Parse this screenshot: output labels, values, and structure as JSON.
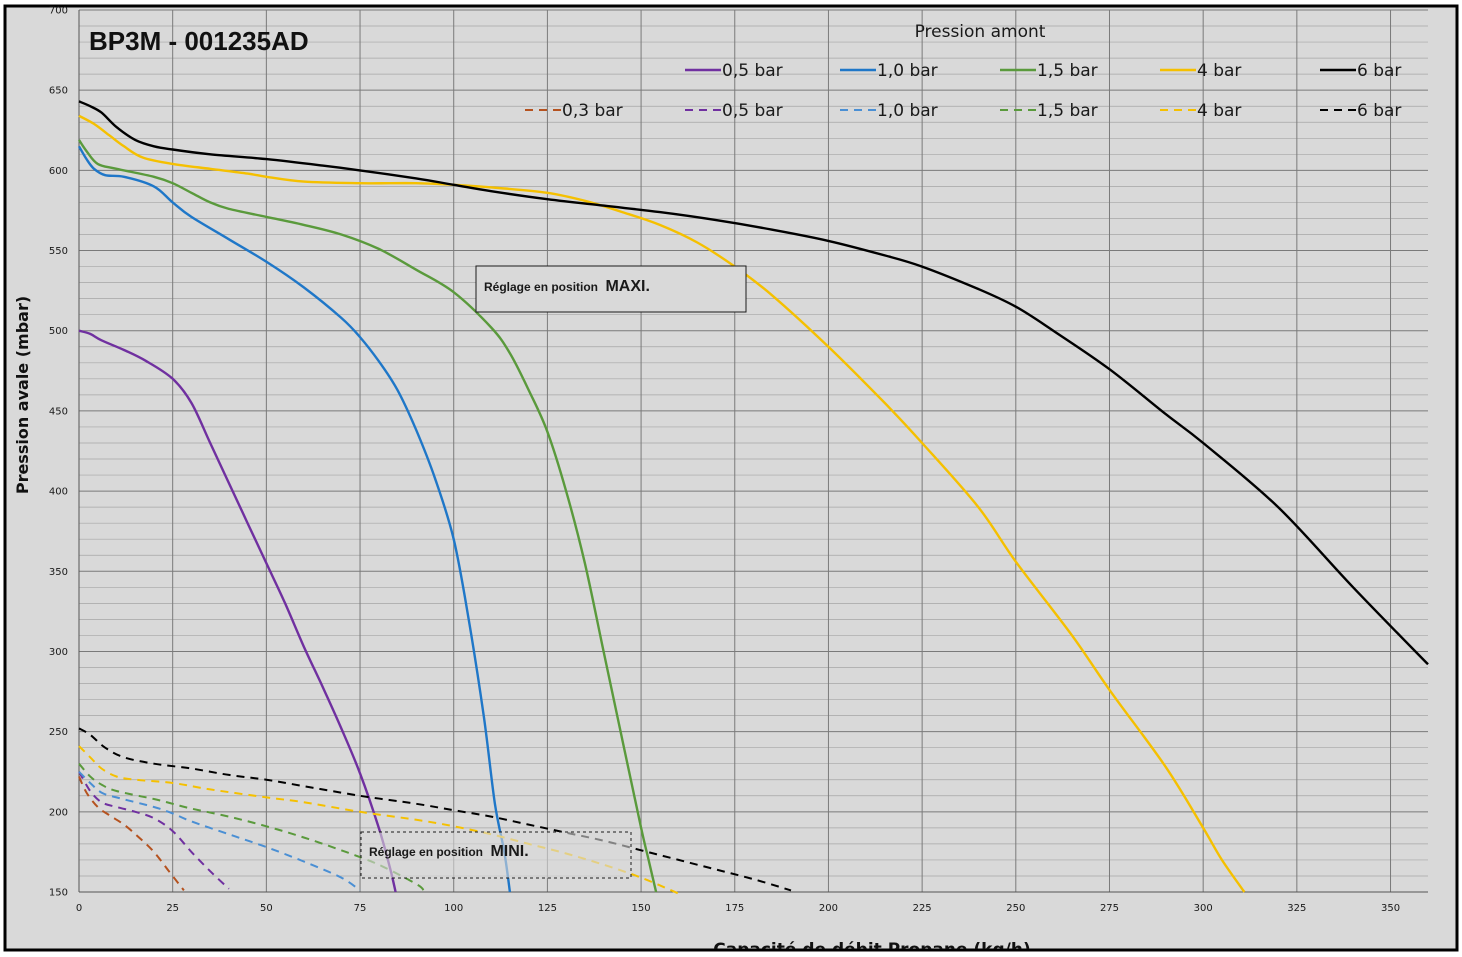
{
  "chart_data": {
    "type": "line",
    "title": "BP3M - 001235AD",
    "xlabel": "Capacité de débit Propane (kg/h)",
    "ylabel": "Pression avale (mbar)",
    "legend_title": "Pression amont",
    "legend_position": "top-right",
    "grid": true,
    "xlim": [
      0,
      360
    ],
    "ylim": [
      150,
      700
    ],
    "xticks": [
      0,
      25,
      50,
      75,
      100,
      125,
      150,
      175,
      200,
      225,
      250,
      275,
      300,
      325,
      350
    ],
    "yticks": [
      150,
      200,
      250,
      300,
      350,
      400,
      450,
      500,
      550,
      600,
      650,
      700
    ],
    "colors": {
      "background": "#d9d9d9",
      "grid": "#8c8c8c",
      "purple": "#7030a0",
      "blue": "#1f77c8",
      "green": "#5a9a3c",
      "yellow": "#f5c000",
      "black": "#000000",
      "orange": "#b5521f"
    },
    "annotations": [
      {
        "text_small": "Réglage en position",
        "text_big": "MAXI.",
        "style": "solid"
      },
      {
        "text_small": "Réglage en position",
        "text_big": "MINI.",
        "style": "dashed"
      }
    ],
    "series": [
      {
        "name": "0,5 bar",
        "style": "solid",
        "color": "#7030a0",
        "points": [
          [
            0,
            500
          ],
          [
            3,
            498
          ],
          [
            6,
            494
          ],
          [
            12,
            488
          ],
          [
            18,
            481
          ],
          [
            25,
            470
          ],
          [
            30,
            455
          ],
          [
            35,
            430
          ],
          [
            40,
            405
          ],
          [
            45,
            380
          ],
          [
            50,
            355
          ],
          [
            55,
            330
          ],
          [
            60,
            303
          ],
          [
            65,
            278
          ],
          [
            70,
            252
          ],
          [
            75,
            224
          ],
          [
            80,
            190
          ],
          [
            83,
            165
          ],
          [
            84.5,
            150
          ]
        ]
      },
      {
        "name": "1,0 bar",
        "style": "solid",
        "color": "#1f77c8",
        "points": [
          [
            0,
            615
          ],
          [
            2,
            607
          ],
          [
            4,
            601
          ],
          [
            7,
            597
          ],
          [
            12,
            596
          ],
          [
            20,
            590
          ],
          [
            25,
            580
          ],
          [
            30,
            571
          ],
          [
            40,
            557
          ],
          [
            50,
            543
          ],
          [
            60,
            527
          ],
          [
            70,
            508
          ],
          [
            75,
            496
          ],
          [
            80,
            481
          ],
          [
            85,
            463
          ],
          [
            90,
            438
          ],
          [
            95,
            408
          ],
          [
            100,
            370
          ],
          [
            104,
            320
          ],
          [
            108,
            260
          ],
          [
            111,
            205
          ],
          [
            113.5,
            175
          ],
          [
            115,
            150
          ]
        ]
      },
      {
        "name": "1,5 bar",
        "style": "solid",
        "color": "#5a9a3c",
        "points": [
          [
            0,
            619
          ],
          [
            2,
            612
          ],
          [
            5,
            604
          ],
          [
            10,
            601
          ],
          [
            20,
            596
          ],
          [
            25,
            592
          ],
          [
            30,
            586
          ],
          [
            35,
            580
          ],
          [
            40,
            576
          ],
          [
            50,
            571
          ],
          [
            60,
            566
          ],
          [
            70,
            560
          ],
          [
            80,
            551
          ],
          [
            90,
            538
          ],
          [
            100,
            524
          ],
          [
            110,
            502
          ],
          [
            115,
            486
          ],
          [
            120,
            463
          ],
          [
            125,
            437
          ],
          [
            130,
            400
          ],
          [
            135,
            355
          ],
          [
            140,
            300
          ],
          [
            145,
            245
          ],
          [
            150,
            190
          ],
          [
            152,
            170
          ],
          [
            154,
            150
          ]
        ]
      },
      {
        "name": "4 bar",
        "style": "solid",
        "color": "#f5c000",
        "points": [
          [
            0,
            634
          ],
          [
            4,
            629
          ],
          [
            8,
            622
          ],
          [
            12,
            615
          ],
          [
            17,
            608
          ],
          [
            25,
            604
          ],
          [
            35,
            601
          ],
          [
            45,
            598
          ],
          [
            50,
            596
          ],
          [
            60,
            593
          ],
          [
            75,
            592
          ],
          [
            90,
            592
          ],
          [
            100,
            591
          ],
          [
            112,
            589
          ],
          [
            125,
            586
          ],
          [
            135,
            581
          ],
          [
            145,
            574
          ],
          [
            155,
            566
          ],
          [
            165,
            555
          ],
          [
            175,
            540
          ],
          [
            185,
            522
          ],
          [
            200,
            490
          ],
          [
            215,
            455
          ],
          [
            225,
            430
          ],
          [
            240,
            390
          ],
          [
            250,
            356
          ],
          [
            265,
            310
          ],
          [
            275,
            276
          ],
          [
            290,
            228
          ],
          [
            300,
            190
          ],
          [
            305,
            170
          ],
          [
            311,
            150
          ]
        ]
      },
      {
        "name": "6 bar",
        "style": "solid",
        "color": "#000000",
        "points": [
          [
            0,
            643
          ],
          [
            3,
            640
          ],
          [
            6,
            636
          ],
          [
            10,
            627
          ],
          [
            15,
            619
          ],
          [
            20,
            615
          ],
          [
            25,
            613
          ],
          [
            35,
            610
          ],
          [
            50,
            607
          ],
          [
            65,
            603
          ],
          [
            75,
            600
          ],
          [
            90,
            595
          ],
          [
            100,
            591
          ],
          [
            110,
            587
          ],
          [
            125,
            582
          ],
          [
            140,
            578
          ],
          [
            155,
            574
          ],
          [
            170,
            569
          ],
          [
            185,
            563
          ],
          [
            200,
            556
          ],
          [
            215,
            547
          ],
          [
            225,
            540
          ],
          [
            240,
            526
          ],
          [
            250,
            515
          ],
          [
            260,
            500
          ],
          [
            275,
            476
          ],
          [
            290,
            448
          ],
          [
            300,
            430
          ],
          [
            320,
            390
          ],
          [
            340,
            340
          ],
          [
            360,
            292
          ]
        ]
      },
      {
        "name": "0,3 bar",
        "style": "dashed",
        "color": "#b5521f",
        "points": [
          [
            0,
            222
          ],
          [
            2,
            212
          ],
          [
            5,
            203
          ],
          [
            8,
            198
          ],
          [
            12,
            192
          ],
          [
            16,
            184
          ],
          [
            20,
            175
          ],
          [
            24,
            163
          ],
          [
            28,
            151
          ]
        ]
      },
      {
        "name": "0,5 bar",
        "style": "dashed",
        "color": "#7030a0",
        "points": [
          [
            0,
            225
          ],
          [
            3,
            213
          ],
          [
            6,
            206
          ],
          [
            10,
            203
          ],
          [
            15,
            200
          ],
          [
            20,
            196
          ],
          [
            25,
            188
          ],
          [
            30,
            175
          ],
          [
            35,
            163
          ],
          [
            40,
            152
          ]
        ]
      },
      {
        "name": "1,0 bar",
        "style": "dashed",
        "color": "#4a8fd4",
        "points": [
          [
            0,
            225
          ],
          [
            3,
            218
          ],
          [
            6,
            212
          ],
          [
            10,
            209
          ],
          [
            20,
            203
          ],
          [
            25,
            199
          ],
          [
            30,
            194
          ],
          [
            40,
            186
          ],
          [
            50,
            178
          ],
          [
            60,
            169
          ],
          [
            70,
            159
          ],
          [
            75,
            151
          ]
        ]
      },
      {
        "name": "1,5 bar",
        "style": "dashed",
        "color": "#5a9a3c",
        "points": [
          [
            0,
            230
          ],
          [
            3,
            222
          ],
          [
            6,
            217
          ],
          [
            10,
            213
          ],
          [
            20,
            208
          ],
          [
            25,
            205
          ],
          [
            30,
            202
          ],
          [
            40,
            197
          ],
          [
            50,
            191
          ],
          [
            60,
            184
          ],
          [
            70,
            176
          ],
          [
            80,
            167
          ],
          [
            90,
            155
          ],
          [
            92,
            151
          ]
        ]
      },
      {
        "name": "4 bar",
        "style": "dashed",
        "color": "#f5c000",
        "points": [
          [
            0,
            241
          ],
          [
            3,
            234
          ],
          [
            6,
            227
          ],
          [
            10,
            222
          ],
          [
            15,
            220
          ],
          [
            25,
            218
          ],
          [
            35,
            214
          ],
          [
            50,
            209
          ],
          [
            60,
            206
          ],
          [
            75,
            200
          ],
          [
            90,
            195
          ],
          [
            100,
            191
          ],
          [
            110,
            186
          ],
          [
            120,
            180
          ],
          [
            130,
            174
          ],
          [
            140,
            167
          ],
          [
            150,
            159
          ],
          [
            160,
            149
          ]
        ]
      },
      {
        "name": "6 bar",
        "style": "dashed",
        "color": "#000000",
        "points": [
          [
            0,
            252
          ],
          [
            3,
            248
          ],
          [
            7,
            240
          ],
          [
            12,
            234
          ],
          [
            20,
            230
          ],
          [
            30,
            227
          ],
          [
            40,
            223
          ],
          [
            50,
            220
          ],
          [
            60,
            216
          ],
          [
            75,
            210
          ],
          [
            90,
            205
          ],
          [
            100,
            201
          ],
          [
            110,
            197
          ],
          [
            120,
            192
          ],
          [
            130,
            187
          ],
          [
            140,
            182
          ],
          [
            150,
            176
          ],
          [
            160,
            170
          ],
          [
            170,
            164
          ],
          [
            180,
            158
          ],
          [
            190,
            151
          ]
        ]
      }
    ]
  }
}
